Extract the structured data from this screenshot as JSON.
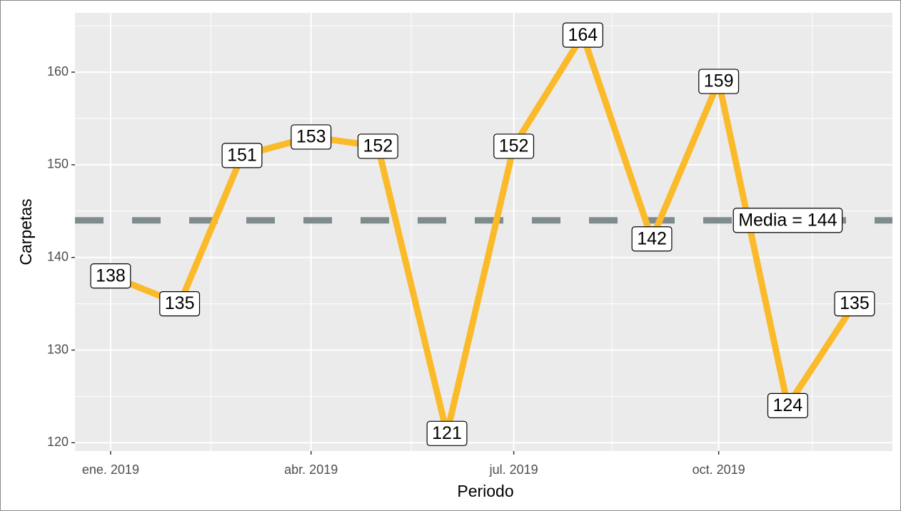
{
  "chart_data": {
    "type": "line",
    "x": [
      "2019-01",
      "2019-02",
      "2019-03",
      "2019-04",
      "2019-05",
      "2019-06",
      "2019-07",
      "2019-08",
      "2019-09",
      "2019-10",
      "2019-11",
      "2019-12"
    ],
    "series": [
      {
        "name": "Carpetas",
        "color": "#fbba2a",
        "values": [
          138,
          135,
          151,
          153,
          152,
          121,
          152,
          164,
          142,
          159,
          124,
          135
        ]
      }
    ],
    "hline": {
      "value": 144,
      "label": "Media = 144",
      "color": "#7f8c8d"
    },
    "xlabel": "Periodo",
    "ylabel": "Carpetas",
    "xlim": [
      "2018-12-16",
      "2019-12-18"
    ],
    "xticks": [
      {
        "value": "2019-01",
        "label": "ene. 2019"
      },
      {
        "value": "2019-04",
        "label": "abr. 2019"
      },
      {
        "value": "2019-07",
        "label": "jul. 2019"
      },
      {
        "value": "2019-10",
        "label": "oct. 2019"
      }
    ],
    "ylim": [
      119.1,
      166.4
    ],
    "yticks": [
      120,
      130,
      140,
      150,
      160
    ],
    "grid": true
  }
}
